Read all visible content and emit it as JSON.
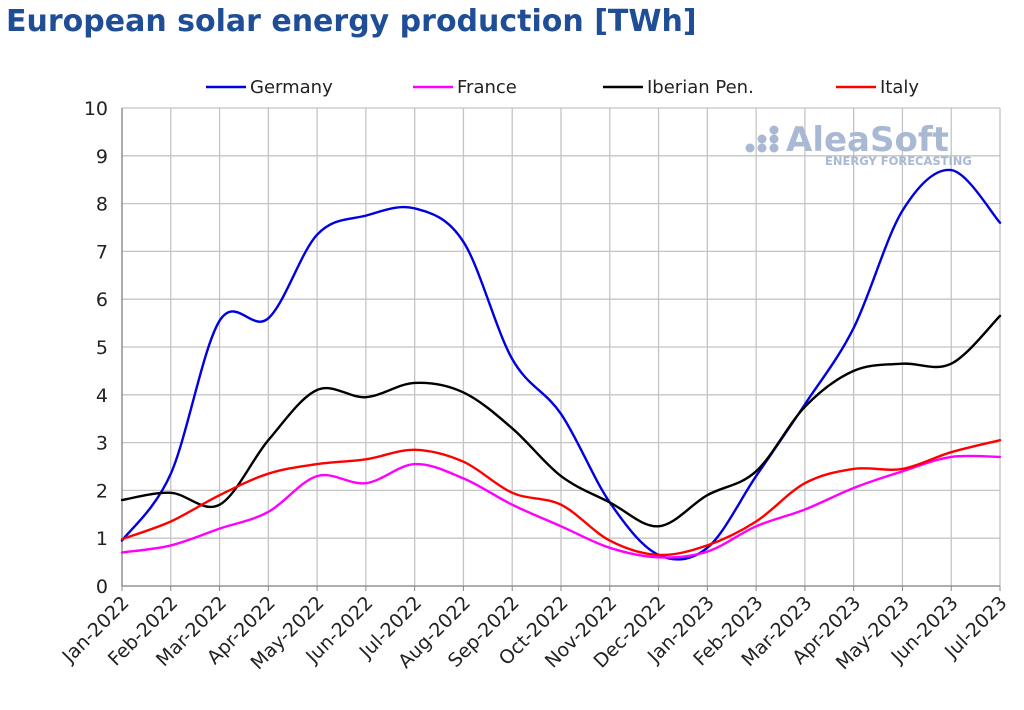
{
  "chart_data": {
    "type": "line",
    "title": "European solar energy production [TWh]",
    "xlabel": "",
    "ylabel": "",
    "ylim": [
      0,
      10
    ],
    "y_ticks": [
      "0",
      "1",
      "2",
      "3",
      "4",
      "5",
      "6",
      "7",
      "8",
      "9",
      "10"
    ],
    "categories": [
      "Jan-2022",
      "Feb-2022",
      "Mar-2022",
      "Apr-2022",
      "May-2022",
      "Jun-2022",
      "Jul-2022",
      "Aug-2022",
      "Sep-2022",
      "Oct-2022",
      "Nov-2022",
      "Dec-2022",
      "Jan-2023",
      "Feb-2023",
      "Mar-2023",
      "Apr-2023",
      "May-2023",
      "Jun-2023",
      "Jul-2023"
    ],
    "grid": true,
    "legend_position": "top",
    "series": [
      {
        "name": "Germany",
        "color": "#0000e0",
        "values": [
          0.95,
          2.35,
          5.55,
          5.6,
          7.35,
          7.75,
          7.9,
          7.2,
          4.75,
          3.6,
          1.75,
          0.65,
          0.8,
          2.3,
          3.8,
          5.4,
          7.85,
          8.7,
          7.6
        ]
      },
      {
        "name": "France",
        "color": "#ff00ff",
        "values": [
          0.7,
          0.85,
          1.2,
          1.55,
          2.3,
          2.15,
          2.55,
          2.25,
          1.7,
          1.25,
          0.8,
          0.6,
          0.72,
          1.25,
          1.6,
          2.05,
          2.4,
          2.7,
          2.7
        ]
      },
      {
        "name": "Iberian Pen.",
        "color": "#000000",
        "values": [
          1.8,
          1.95,
          1.7,
          3.05,
          4.1,
          3.95,
          4.25,
          4.05,
          3.3,
          2.3,
          1.75,
          1.25,
          1.9,
          2.4,
          3.75,
          4.5,
          4.65,
          4.65,
          5.65
        ]
      },
      {
        "name": "Italy",
        "color": "#ff0000",
        "values": [
          0.98,
          1.35,
          1.9,
          2.35,
          2.55,
          2.65,
          2.85,
          2.6,
          1.95,
          1.7,
          0.95,
          0.65,
          0.85,
          1.35,
          2.15,
          2.45,
          2.45,
          2.8,
          3.05
        ]
      }
    ]
  },
  "watermark": {
    "brand": "AleaSoft",
    "tagline": "ENERGY FORECASTING",
    "color": "#a9b8d3"
  }
}
